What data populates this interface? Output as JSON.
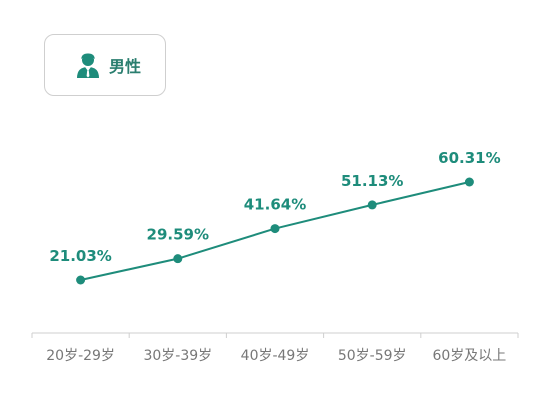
{
  "legend": {
    "label": "男性",
    "icon": "male-user-icon",
    "color": "#1e8c7b"
  },
  "colors": {
    "line": "#1e8c7b",
    "axis": "#cfcfcf",
    "tick_text": "#777777"
  },
  "chart_data": {
    "type": "line",
    "categories": [
      "20岁-29岁",
      "30岁-39岁",
      "40岁-49岁",
      "50岁-59岁",
      "60岁及以上"
    ],
    "series": [
      {
        "name": "男性",
        "values": [
          21.03,
          29.59,
          41.64,
          51.13,
          60.31
        ],
        "labels": [
          "21.03%",
          "29.59%",
          "41.64%",
          "51.13%",
          "60.31%"
        ]
      }
    ],
    "title": "",
    "xlabel": "",
    "ylabel": "",
    "legend_position": "top-left",
    "grid": false
  }
}
